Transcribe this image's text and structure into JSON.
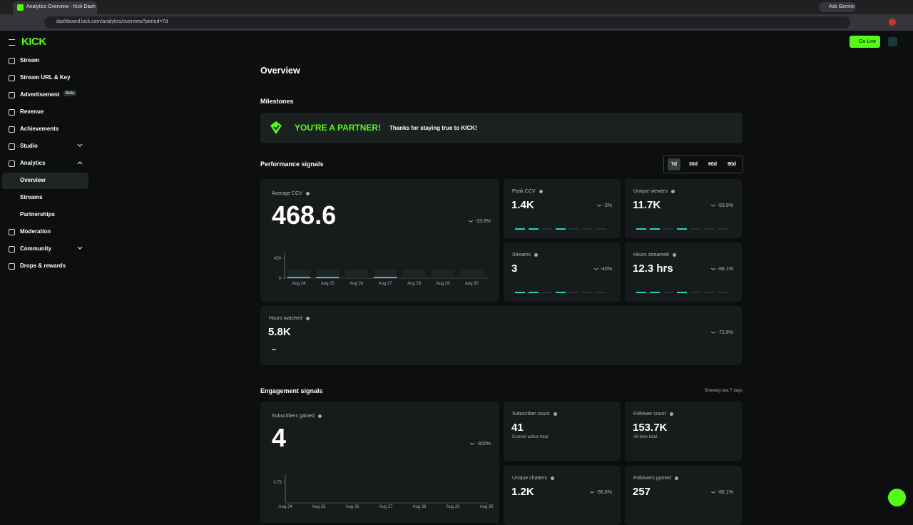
{
  "browser": {
    "tab_title": "Analytics Overview - Kick Dash",
    "url": "dashboard.kick.com/analytics/overview?period=7d",
    "gemini": "Ask Gemini"
  },
  "header": {
    "logo": "KICK",
    "go_live": "Go Live"
  },
  "sidebar": {
    "items": [
      "Stream",
      "Stream URL & Key",
      "Advertisement",
      "Revenue",
      "Achievements",
      "Studio",
      "Analytics",
      "Overview",
      "Streams",
      "Partnerships",
      "Moderation",
      "Community",
      "Drops & rewards"
    ],
    "badge": "Beta"
  },
  "page": {
    "title": "Overview",
    "milestones": {
      "heading": "Milestones",
      "badge": "YOU'RE A PARTNER!",
      "message": "Thanks for staying true to KICK!"
    },
    "performance": {
      "heading": "Performance signals",
      "periods": [
        "7d",
        "30d",
        "60d",
        "90d"
      ],
      "main": {
        "label": "Average CCV",
        "value": "468.6",
        "change": "-19.8%",
        "chart": {
          "type": "bar",
          "categories": [
            "Aug 24",
            "Aug 25",
            "Aug 26",
            "Aug 27",
            "Aug 28",
            "Aug 29",
            "Aug 30"
          ],
          "values": [
            30,
            30,
            null,
            30,
            null,
            null,
            null
          ],
          "ylim": [
            0,
            560
          ],
          "yticks": [
            0,
            450
          ],
          "color": "#2ad4c4"
        }
      },
      "cards": [
        {
          "label": "Peak CCV",
          "value": "1.4K",
          "change": "-3%"
        },
        {
          "label": "Unique viewers",
          "value": "11.7K",
          "change": "-53.9%"
        },
        {
          "label": "Streams",
          "value": "3",
          "change": "-40%"
        },
        {
          "label": "Hours streamed",
          "value": "12.3 hrs",
          "change": "-66.1%"
        }
      ],
      "hours_watched": {
        "label": "Hours watched",
        "value": "5.8K",
        "change": "-72.8%"
      }
    },
    "engagement": {
      "heading": "Engagement signals",
      "note": "Showing last 7 days",
      "main": {
        "label": "Subscribers gained",
        "value": "4",
        "change": "-300%",
        "chart": {
          "type": "bar",
          "categories": [
            "Aug 24",
            "Aug 25",
            "Aug 26",
            "Aug 27",
            "Aug 28",
            "Aug 29",
            "Aug 30"
          ],
          "ylim": [
            0,
            1
          ],
          "yticks": [
            0.75
          ]
        }
      },
      "cards": [
        {
          "label": "Subscriber count",
          "value": "41",
          "sub": "Current active total"
        },
        {
          "label": "Follower count",
          "value": "153.7K",
          "sub": "All-time total"
        },
        {
          "label": "Unique chatters",
          "value": "1.2K",
          "change": "-56.8%"
        },
        {
          "label": "Followers gained",
          "value": "257",
          "change": "-66.1%"
        }
      ]
    }
  }
}
